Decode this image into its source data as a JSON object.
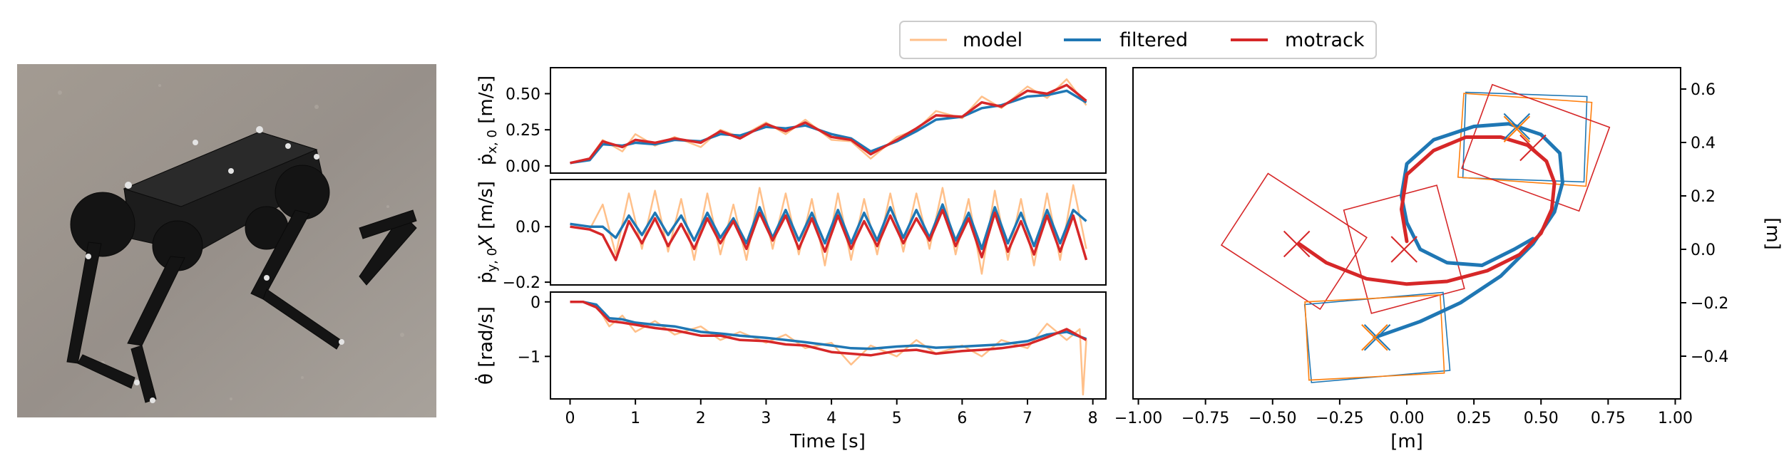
{
  "colors": {
    "model": "#ffc08a",
    "filtered": "#1f77b4",
    "motrack": "#d62728",
    "orange": "#ff7f0e"
  },
  "photo": {
    "subject": "quadruped robot with motion-capture markers on a concrete floor"
  },
  "legend": [
    "model",
    "filtered",
    "motrack"
  ],
  "chart_data": [
    {
      "type": "line",
      "panel": "vx",
      "ylabel_main": "ṗ",
      "ylabel_sub": "x, 0",
      "ylabel_unit": " [m/s]",
      "yticks": [
        "0.00",
        "0.25",
        "0.50"
      ],
      "ytick_values": [
        0.0,
        0.25,
        0.5
      ],
      "ylim": [
        -0.05,
        0.68
      ],
      "xlim": [
        -0.3,
        8.2
      ],
      "series": [
        {
          "name": "model",
          "x": [
            0,
            0.3,
            0.5,
            0.8,
            1.0,
            1.3,
            1.6,
            2.0,
            2.3,
            2.6,
            3.0,
            3.3,
            3.6,
            4.0,
            4.3,
            4.6,
            5.0,
            5.3,
            5.6,
            6.0,
            6.3,
            6.6,
            7.0,
            7.3,
            7.6,
            7.9
          ],
          "y": [
            0.02,
            0.05,
            0.18,
            0.1,
            0.22,
            0.14,
            0.2,
            0.13,
            0.25,
            0.2,
            0.3,
            0.22,
            0.32,
            0.18,
            0.17,
            0.05,
            0.2,
            0.25,
            0.38,
            0.33,
            0.48,
            0.4,
            0.55,
            0.47,
            0.6,
            0.42
          ]
        },
        {
          "name": "filtered",
          "x": [
            0,
            0.3,
            0.5,
            0.8,
            1.0,
            1.3,
            1.6,
            2.0,
            2.3,
            2.6,
            3.0,
            3.3,
            3.6,
            4.0,
            4.3,
            4.6,
            5.0,
            5.3,
            5.6,
            6.0,
            6.3,
            6.6,
            7.0,
            7.3,
            7.6,
            7.9
          ],
          "y": [
            0.02,
            0.04,
            0.15,
            0.14,
            0.16,
            0.15,
            0.18,
            0.17,
            0.22,
            0.21,
            0.27,
            0.26,
            0.28,
            0.22,
            0.19,
            0.1,
            0.17,
            0.24,
            0.32,
            0.34,
            0.4,
            0.42,
            0.48,
            0.49,
            0.52,
            0.44
          ]
        },
        {
          "name": "motrack",
          "x": [
            0,
            0.3,
            0.5,
            0.8,
            1.0,
            1.3,
            1.6,
            2.0,
            2.3,
            2.6,
            3.0,
            3.3,
            3.6,
            4.0,
            4.3,
            4.6,
            5.0,
            5.3,
            5.6,
            6.0,
            6.3,
            6.6,
            7.0,
            7.3,
            7.6,
            7.9
          ],
          "y": [
            0.02,
            0.05,
            0.17,
            0.13,
            0.18,
            0.16,
            0.19,
            0.16,
            0.24,
            0.19,
            0.29,
            0.24,
            0.3,
            0.2,
            0.18,
            0.08,
            0.18,
            0.26,
            0.35,
            0.34,
            0.44,
            0.41,
            0.52,
            0.5,
            0.56,
            0.45
          ]
        }
      ]
    },
    {
      "type": "line",
      "panel": "vy",
      "ylabel_main": "ṗ",
      "ylabel_sub": "y, 0",
      "ylabel_x": "X",
      "ylabel_unit": " [m/s]",
      "yticks": [
        "0.0",
        "−0.2"
      ],
      "ytick_values": [
        0.0,
        -0.2
      ],
      "ylim": [
        -0.21,
        0.17
      ],
      "xlim": [
        -0.3,
        8.2
      ],
      "series": [
        {
          "name": "model",
          "x": [
            0,
            0.3,
            0.5,
            0.7,
            0.9,
            1.1,
            1.3,
            1.5,
            1.7,
            1.9,
            2.1,
            2.3,
            2.5,
            2.7,
            2.9,
            3.1,
            3.3,
            3.5,
            3.7,
            3.9,
            4.1,
            4.3,
            4.5,
            4.7,
            4.9,
            5.1,
            5.3,
            5.5,
            5.7,
            5.9,
            6.1,
            6.3,
            6.5,
            6.7,
            6.9,
            7.1,
            7.3,
            7.5,
            7.7,
            7.9
          ],
          "y": [
            0.0,
            -0.01,
            0.08,
            -0.1,
            0.12,
            -0.08,
            0.13,
            -0.09,
            0.1,
            -0.12,
            0.12,
            -0.1,
            0.08,
            -0.12,
            0.14,
            -0.08,
            0.12,
            -0.1,
            0.1,
            -0.14,
            0.12,
            -0.12,
            0.1,
            -0.1,
            0.12,
            -0.09,
            0.12,
            -0.08,
            0.14,
            -0.1,
            0.1,
            -0.17,
            0.13,
            -0.12,
            0.1,
            -0.14,
            0.12,
            -0.12,
            0.15,
            -0.08
          ]
        },
        {
          "name": "filtered",
          "x": [
            0,
            0.3,
            0.5,
            0.7,
            0.9,
            1.1,
            1.3,
            1.5,
            1.7,
            1.9,
            2.1,
            2.3,
            2.5,
            2.7,
            2.9,
            3.1,
            3.3,
            3.5,
            3.7,
            3.9,
            4.1,
            4.3,
            4.5,
            4.7,
            4.9,
            5.1,
            5.3,
            5.5,
            5.7,
            5.9,
            6.1,
            6.3,
            6.5,
            6.7,
            6.9,
            7.1,
            7.3,
            7.5,
            7.7,
            7.9
          ],
          "y": [
            0.01,
            0.0,
            0.0,
            -0.04,
            0.04,
            -0.03,
            0.05,
            -0.03,
            0.04,
            -0.05,
            0.05,
            -0.04,
            0.03,
            -0.06,
            0.07,
            -0.04,
            0.06,
            -0.05,
            0.05,
            -0.06,
            0.06,
            -0.06,
            0.05,
            -0.05,
            0.07,
            -0.04,
            0.06,
            -0.04,
            0.08,
            -0.05,
            0.05,
            -0.08,
            0.07,
            -0.06,
            0.05,
            -0.07,
            0.06,
            -0.06,
            0.06,
            0.02
          ]
        },
        {
          "name": "motrack",
          "x": [
            0,
            0.3,
            0.5,
            0.7,
            0.9,
            1.1,
            1.3,
            1.5,
            1.7,
            1.9,
            2.1,
            2.3,
            2.5,
            2.7,
            2.9,
            3.1,
            3.3,
            3.5,
            3.7,
            3.9,
            4.1,
            4.3,
            4.5,
            4.7,
            4.9,
            5.1,
            5.3,
            5.5,
            5.7,
            5.9,
            6.1,
            6.3,
            6.5,
            6.7,
            6.9,
            7.1,
            7.3,
            7.5,
            7.7,
            7.9
          ],
          "y": [
            0.0,
            -0.01,
            -0.03,
            -0.12,
            0.02,
            -0.06,
            0.03,
            -0.07,
            0.01,
            -0.08,
            0.03,
            -0.06,
            0.02,
            -0.08,
            0.05,
            -0.05,
            0.04,
            -0.08,
            0.03,
            -0.09,
            0.04,
            -0.08,
            0.02,
            -0.07,
            0.04,
            -0.06,
            0.03,
            -0.05,
            0.06,
            -0.07,
            0.03,
            -0.11,
            0.05,
            -0.09,
            0.02,
            -0.1,
            0.04,
            -0.09,
            0.04,
            -0.12
          ]
        }
      ]
    },
    {
      "type": "line",
      "panel": "omega",
      "ylabel_main": "θ̇",
      "ylabel_unit": " [rad/s]",
      "yticks": [
        "0",
        "−1"
      ],
      "ytick_values": [
        0,
        -1
      ],
      "ylim": [
        -1.78,
        0.18
      ],
      "xlim": [
        -0.3,
        8.2
      ],
      "xticks": [
        "0",
        "1",
        "2",
        "3",
        "4",
        "5",
        "6",
        "7",
        "8"
      ],
      "xtick_values": [
        0,
        1,
        2,
        3,
        4,
        5,
        6,
        7,
        8
      ],
      "xlabel": "Time [s]",
      "series": [
        {
          "name": "model",
          "x": [
            0,
            0.2,
            0.4,
            0.6,
            0.8,
            1.0,
            1.3,
            1.6,
            2.0,
            2.3,
            2.6,
            3.0,
            3.3,
            3.6,
            4.0,
            4.3,
            4.6,
            5.0,
            5.3,
            5.6,
            6.0,
            6.3,
            6.6,
            7.0,
            7.3,
            7.6,
            7.8,
            7.85,
            7.9
          ],
          "y": [
            0.0,
            0.0,
            -0.05,
            -0.45,
            -0.25,
            -0.55,
            -0.35,
            -0.6,
            -0.45,
            -0.7,
            -0.55,
            -0.75,
            -0.6,
            -0.85,
            -0.75,
            -1.15,
            -0.8,
            -1.0,
            -0.7,
            -0.95,
            -0.8,
            -1.0,
            -0.7,
            -0.85,
            -0.4,
            -0.7,
            -0.5,
            -1.7,
            -0.7
          ]
        },
        {
          "name": "filtered",
          "x": [
            0,
            0.2,
            0.4,
            0.6,
            0.8,
            1.0,
            1.3,
            1.6,
            2.0,
            2.3,
            2.6,
            3.0,
            3.3,
            3.6,
            4.0,
            4.3,
            4.6,
            5.0,
            5.3,
            5.6,
            6.0,
            6.3,
            6.6,
            7.0,
            7.3,
            7.6,
            7.9
          ],
          "y": [
            0.0,
            0.0,
            -0.05,
            -0.3,
            -0.32,
            -0.38,
            -0.42,
            -0.45,
            -0.55,
            -0.58,
            -0.62,
            -0.66,
            -0.7,
            -0.74,
            -0.8,
            -0.85,
            -0.86,
            -0.82,
            -0.8,
            -0.84,
            -0.82,
            -0.8,
            -0.78,
            -0.72,
            -0.6,
            -0.55,
            -0.68
          ]
        },
        {
          "name": "motrack",
          "x": [
            0,
            0.2,
            0.4,
            0.6,
            0.8,
            1.0,
            1.3,
            1.6,
            2.0,
            2.3,
            2.6,
            3.0,
            3.3,
            3.6,
            4.0,
            4.3,
            4.6,
            5.0,
            5.3,
            5.6,
            6.0,
            6.3,
            6.6,
            7.0,
            7.3,
            7.6,
            7.9
          ],
          "y": [
            0.0,
            0.0,
            -0.1,
            -0.35,
            -0.38,
            -0.42,
            -0.48,
            -0.52,
            -0.62,
            -0.62,
            -0.7,
            -0.72,
            -0.78,
            -0.8,
            -0.92,
            -0.95,
            -0.98,
            -0.9,
            -0.88,
            -0.95,
            -0.9,
            -0.88,
            -0.85,
            -0.78,
            -0.65,
            -0.5,
            -0.7
          ]
        }
      ]
    },
    {
      "type": "line",
      "panel": "trajectory",
      "xlabel": "[m]",
      "ylabel": "[m]",
      "xlim": [
        -1.02,
        1.02
      ],
      "ylim": [
        -0.56,
        0.68
      ],
      "xticks": [
        "−1.00",
        "−0.75",
        "−0.50",
        "−0.25",
        "0.00",
        "0.25",
        "0.50",
        "0.75",
        "1.00"
      ],
      "xtick_values": [
        -1.0,
        -0.75,
        -0.5,
        -0.25,
        0.0,
        0.25,
        0.5,
        0.75,
        1.0
      ],
      "yticks": [
        "0.6",
        "0.4",
        "0.2",
        "0.0",
        "−0.2",
        "−0.4"
      ],
      "ytick_values": [
        0.6,
        0.4,
        0.2,
        0.0,
        -0.2,
        -0.4
      ],
      "series": [
        {
          "name": "filtered",
          "x": [
            -0.12,
            0.05,
            0.2,
            0.35,
            0.47,
            0.55,
            0.58,
            0.57,
            0.5,
            0.38,
            0.25,
            0.1,
            0.0,
            -0.02,
            0.0,
            0.05,
            0.15,
            0.28,
            0.4,
            0.47
          ],
          "y": [
            -0.33,
            -0.27,
            -0.2,
            -0.1,
            0.02,
            0.14,
            0.25,
            0.36,
            0.43,
            0.47,
            0.46,
            0.41,
            0.32,
            0.2,
            0.1,
            0.0,
            -0.05,
            -0.06,
            0.0,
            0.04
          ]
        },
        {
          "name": "motrack",
          "x": [
            -0.4,
            -0.3,
            -0.15,
            0.0,
            0.15,
            0.3,
            0.42,
            0.5,
            0.54,
            0.55,
            0.52,
            0.45,
            0.35,
            0.22,
            0.1,
            0.0,
            -0.02,
            0.0
          ],
          "y": [
            0.02,
            -0.05,
            -0.11,
            -0.13,
            -0.12,
            -0.08,
            -0.02,
            0.06,
            0.15,
            0.25,
            0.33,
            0.39,
            0.42,
            0.42,
            0.37,
            0.28,
            0.15,
            0.03
          ]
        }
      ]
    }
  ]
}
